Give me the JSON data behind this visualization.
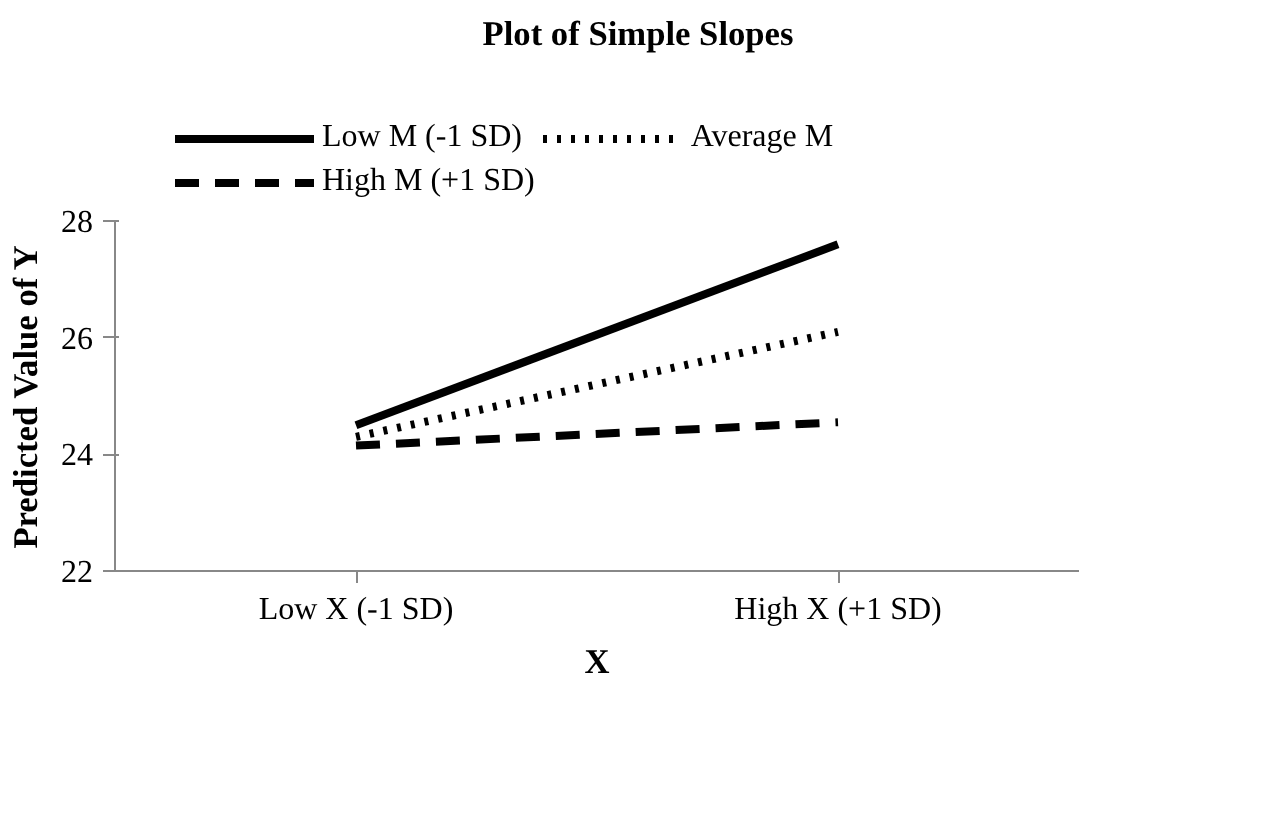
{
  "chart_data": {
    "type": "line",
    "title": "Plot of Simple Slopes",
    "xlabel": "X",
    "ylabel": "Predicted Value of Y",
    "categories": [
      "Low X (-1 SD)",
      "High X (+1 SD)"
    ],
    "series": [
      {
        "name": "Low M (-1 SD)",
        "color": "#000000",
        "values": [
          24.5,
          27.6
        ],
        "line_style": "solid"
      },
      {
        "name": "Average M",
        "color": "#000000",
        "values": [
          24.3,
          26.1
        ],
        "line_style": "dotted"
      },
      {
        "name": "High M (+1 SD)",
        "color": "#000000",
        "values": [
          24.15,
          24.55
        ],
        "line_style": "dashed"
      }
    ],
    "ylim": [
      22,
      28
    ],
    "yticks": [
      22,
      24,
      26,
      28
    ],
    "grid": false,
    "legend": "top",
    "marker": "none"
  }
}
